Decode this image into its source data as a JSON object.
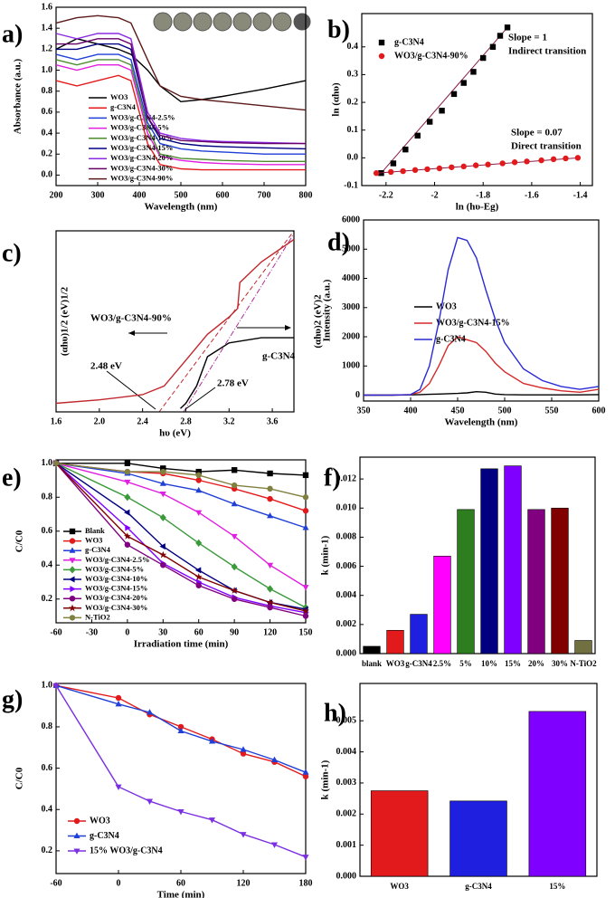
{
  "chart_data": [
    {
      "type": "line",
      "label": "a)",
      "xlabel": "Wavelength (nm)",
      "ylabel": "Absorbance (a.u.)",
      "xlim": [
        200,
        800
      ],
      "ylim": [
        -0.1,
        1.6
      ],
      "xticks": [
        200,
        300,
        400,
        500,
        600,
        700,
        800
      ],
      "yticks": [
        {
          "value": 0,
          "label": "0.0"
        },
        0.2,
        0.4,
        0.6,
        0.8,
        {
          "value": 1,
          "label": "1.0"
        },
        1.2,
        1.4,
        1.6
      ],
      "legend": "lower left",
      "x": [
        200,
        250,
        300,
        350,
        380,
        420,
        450,
        500,
        550,
        600,
        700,
        800
      ],
      "series": [
        {
          "name": "WO3",
          "color": "#000000",
          "values": [
            1.2,
            1.3,
            1.25,
            1.2,
            1.15,
            1.0,
            0.85,
            0.7,
            0.72,
            0.75,
            0.82,
            0.9
          ]
        },
        {
          "name": "g-C3N4",
          "color": "#e31a1c",
          "values": [
            0.9,
            0.85,
            0.9,
            0.95,
            0.9,
            0.3,
            0.1,
            0.06,
            0.05,
            0.05,
            0.05,
            0.05
          ]
        },
        {
          "name": "WO3/g-C3N4-2.5%",
          "color": "#1f3fd6",
          "values": [
            1.15,
            1.1,
            1.15,
            1.15,
            1.1,
            0.5,
            0.3,
            0.25,
            0.23,
            0.22,
            0.2,
            0.2
          ]
        },
        {
          "name": "WO3/g-C3N4-5%",
          "color": "#e020e0",
          "values": [
            1.05,
            1.0,
            1.05,
            1.05,
            1.0,
            0.4,
            0.18,
            0.14,
            0.12,
            0.11,
            0.1,
            0.1
          ]
        },
        {
          "name": "WO3/g-C3N4-10%",
          "color": "#4d8c2e",
          "values": [
            1.1,
            1.05,
            1.1,
            1.1,
            1.05,
            0.45,
            0.2,
            0.16,
            0.15,
            0.14,
            0.13,
            0.13
          ]
        },
        {
          "name": "WO3/g-C3N4-15%",
          "color": "#000080",
          "values": [
            1.2,
            1.2,
            1.25,
            1.25,
            1.2,
            0.55,
            0.35,
            0.3,
            0.28,
            0.27,
            0.26,
            0.25
          ]
        },
        {
          "name": "WO3/g-C3N4-20%",
          "color": "#8a2be2",
          "values": [
            1.35,
            1.3,
            1.35,
            1.35,
            1.3,
            0.6,
            0.4,
            0.35,
            0.33,
            0.32,
            0.31,
            0.3
          ]
        },
        {
          "name": "WO3/g-C3N4-30%",
          "color": "#660066",
          "values": [
            1.25,
            1.25,
            1.3,
            1.3,
            1.25,
            0.55,
            0.38,
            0.33,
            0.32,
            0.31,
            0.3,
            0.3
          ]
        },
        {
          "name": "WO3/g-C3N4-90%",
          "color": "#5c1a1a",
          "values": [
            1.45,
            1.5,
            1.52,
            1.5,
            1.45,
            1.1,
            0.85,
            0.75,
            0.72,
            0.7,
            0.66,
            0.62
          ]
        }
      ]
    },
    {
      "type": "scatter",
      "label": "b)",
      "xlabel": "ln (hυ-Eg)",
      "ylabel": "ln (αhυ)",
      "xlim": [
        -2.3,
        -1.35
      ],
      "ylim": [
        -0.1,
        0.52
      ],
      "xticks": [
        -2.2,
        -2,
        -1.8,
        -1.6,
        -1.4
      ],
      "yticks": [
        -0.1,
        {
          "value": 0,
          "label": "0.0"
        },
        0.1,
        0.2,
        0.3,
        0.4
      ],
      "legend": "upper left",
      "annotations": [
        "Slope = 1",
        "Indirect transition",
        "Slope = 0.07",
        "Direct transition"
      ],
      "series": [
        {
          "name": "g-C3N4",
          "color": "#000000",
          "marker": "square",
          "fit_color": "#8b1a4a",
          "x": [
            -2.22,
            -2.17,
            -2.12,
            -2.07,
            -2.02,
            -1.97,
            -1.92,
            -1.88,
            -1.84,
            -1.8,
            -1.76,
            -1.73,
            -1.7
          ],
          "values": [
            -0.055,
            -0.02,
            0.03,
            0.08,
            0.13,
            0.17,
            0.23,
            0.27,
            0.31,
            0.36,
            0.4,
            0.44,
            0.47
          ]
        },
        {
          "name": "WO3/g-C3N4-90%",
          "color": "#e31a1c",
          "marker": "circle",
          "fit_color": "#8b1a4a",
          "x": [
            -2.24,
            -2.18,
            -2.13,
            -2.08,
            -2.03,
            -1.98,
            -1.93,
            -1.88,
            -1.83,
            -1.78,
            -1.72,
            -1.67,
            -1.62,
            -1.56,
            -1.51,
            -1.46,
            -1.41
          ],
          "values": [
            -0.055,
            -0.051,
            -0.048,
            -0.044,
            -0.041,
            -0.038,
            -0.034,
            -0.031,
            -0.027,
            -0.024,
            -0.02,
            -0.016,
            -0.013,
            -0.009,
            -0.005,
            -0.002,
            0
          ]
        }
      ]
    },
    {
      "type": "line",
      "label": "c)",
      "xlabel": "hυ (eV)",
      "ylabel": "(αhυ)1/2 (eV)1/2",
      "y2label": "(αhυ)2 (eV)2",
      "xlim": [
        1.6,
        3.8
      ],
      "ylim": [
        0,
        1.05
      ],
      "xticks": [
        1.6,
        {
          "value": 2,
          "label": "2.0"
        },
        2.4,
        2.8,
        3.2,
        3.6
      ],
      "legend": "labels",
      "annotations": [
        "2.48 eV",
        "2.78 eV"
      ],
      "series": [
        {
          "name": "WO3/g-C3N4-90%",
          "color": "#c0282d",
          "x": [
            1.6,
            2.0,
            2.4,
            2.6,
            2.8,
            3.0,
            3.2,
            3.28,
            3.3,
            3.5,
            3.8
          ],
          "values": [
            0.05,
            0.07,
            0.1,
            0.15,
            0.3,
            0.45,
            0.55,
            0.6,
            0.75,
            0.87,
            1.0
          ]
        },
        {
          "name": "g-C3N4",
          "color": "#000000",
          "x": [
            2.75,
            2.8,
            2.9,
            3.0,
            3.2,
            3.5,
            3.8
          ],
          "values": [
            0.02,
            0.05,
            0.15,
            0.32,
            0.4,
            0.43,
            0.43
          ]
        }
      ]
    },
    {
      "type": "line",
      "label": "d)",
      "xlabel": "Wavelength (nm)",
      "ylabel": "Intensity (a.u.)",
      "xlim": [
        350,
        600
      ],
      "ylim": [
        -200,
        6000
      ],
      "xticks": [
        350,
        400,
        450,
        500,
        550,
        600
      ],
      "yticks": [
        0,
        1000,
        2000,
        3000,
        4000,
        5000,
        6000
      ],
      "legend": "right",
      "x": [
        350,
        380,
        400,
        410,
        420,
        430,
        440,
        450,
        460,
        470,
        480,
        490,
        500,
        520,
        540,
        560,
        580,
        600
      ],
      "series": [
        {
          "name": "WO3",
          "color": "#000000",
          "values": [
            0,
            0,
            10,
            20,
            30,
            40,
            50,
            60,
            80,
            120,
            100,
            40,
            20,
            10,
            10,
            10,
            10,
            20
          ]
        },
        {
          "name": "WO3/g-C3N4-15%",
          "color": "#d42a2a",
          "values": [
            0,
            5,
            20,
            100,
            400,
            1000,
            1700,
            2000,
            1900,
            1800,
            1500,
            1100,
            800,
            400,
            250,
            150,
            100,
            200
          ]
        },
        {
          "name": "g-C3N4",
          "color": "#2a2ad4",
          "values": [
            0,
            5,
            20,
            200,
            1000,
            2500,
            4300,
            5400,
            5300,
            4700,
            3600,
            2600,
            1800,
            900,
            500,
            300,
            200,
            300
          ]
        }
      ]
    },
    {
      "type": "line",
      "label": "e)",
      "xlabel": "Irradiation time (min)",
      "ylabel": "C/C0",
      "xlim": [
        -60,
        150
      ],
      "ylim": [
        0.06,
        1.02
      ],
      "xticks": [
        -60,
        -30,
        0,
        30,
        60,
        90,
        120,
        150
      ],
      "yticks": [
        0.2,
        0.4,
        0.6,
        0.8,
        {
          "value": 1,
          "label": "1.0"
        }
      ],
      "legend": "lower left",
      "x": [
        -60,
        0,
        30,
        60,
        90,
        120,
        150
      ],
      "series": [
        {
          "name": "Blank",
          "color": "#000000",
          "marker": "square",
          "values": [
            1.0,
            1.0,
            0.97,
            0.95,
            0.96,
            0.94,
            0.93
          ]
        },
        {
          "name": "WO3",
          "color": "#e31a1c",
          "marker": "circle",
          "values": [
            1.0,
            0.95,
            0.94,
            0.9,
            0.85,
            0.79,
            0.72
          ]
        },
        {
          "name": "g-C3N4",
          "color": "#1f3fd6",
          "marker": "triangle",
          "values": [
            1.0,
            0.94,
            0.88,
            0.84,
            0.76,
            0.69,
            0.62
          ]
        },
        {
          "name": "WO3/g-C3N4-2.5%",
          "color": "#e020e0",
          "marker": "triangle-down",
          "values": [
            1.0,
            0.89,
            0.82,
            0.71,
            0.57,
            0.4,
            0.27
          ]
        },
        {
          "name": "WO3/g-C3N4-5%",
          "color": "#3a9a3a",
          "marker": "diamond",
          "values": [
            1.0,
            0.8,
            0.68,
            0.53,
            0.39,
            0.26,
            0.15
          ]
        },
        {
          "name": "WO3/g-C3N4-10%",
          "color": "#000080",
          "marker": "triangle-left",
          "values": [
            1.0,
            0.71,
            0.51,
            0.37,
            0.25,
            0.18,
            0.14
          ]
        },
        {
          "name": "WO3/g-C3N4-15%",
          "color": "#8000ff",
          "marker": "triangle-right",
          "values": [
            1.0,
            0.62,
            0.41,
            0.3,
            0.21,
            0.16,
            0.12
          ]
        },
        {
          "name": "WO3/g-C3N4-20%",
          "color": "#800080",
          "marker": "circle",
          "values": [
            1.0,
            0.52,
            0.4,
            0.28,
            0.2,
            0.15,
            0.1
          ]
        },
        {
          "name": "WO3/g-C3N4-30%",
          "color": "#800000",
          "marker": "star",
          "values": [
            1.0,
            0.57,
            0.46,
            0.33,
            0.25,
            0.18,
            0.13
          ]
        },
        {
          "name": "N-TiO2",
          "color": "#808040",
          "marker": "circle",
          "values": [
            1.0,
            0.95,
            0.95,
            0.93,
            0.87,
            0.85,
            0.8
          ]
        }
      ]
    },
    {
      "type": "bar",
      "label": "f)",
      "ylabel": "k (min-1)",
      "ylim": [
        0,
        0.0135
      ],
      "yticks": [
        {
          "value": 0,
          "label": "0.000"
        },
        {
          "value": 0.002,
          "label": "0.002"
        },
        {
          "value": 0.004,
          "label": "0.004"
        },
        {
          "value": 0.006,
          "label": "0.006"
        },
        {
          "value": 0.008,
          "label": "0.008"
        },
        {
          "value": 0.01,
          "label": "0.010"
        },
        {
          "value": 0.012,
          "label": "0.012"
        }
      ],
      "categories": [
        "blank",
        "WO3",
        "g-C3N4",
        "2.5%",
        "5%",
        "10%",
        "15%",
        "20%",
        "30%",
        "N-TiO2"
      ],
      "values": [
        0.0005,
        0.0016,
        0.0027,
        0.0067,
        0.0099,
        0.0127,
        0.0129,
        0.0099,
        0.01,
        0.0009
      ],
      "colors": [
        "#000000",
        "#e31a1c",
        "#1f1fe0",
        "#ff00ff",
        "#2e7d1e",
        "#000080",
        "#8000ff",
        "#800080",
        "#800000",
        "#707040"
      ]
    },
    {
      "type": "line",
      "label": "g)",
      "xlabel": "Time (min)",
      "ylabel": "C/C0",
      "xlim": [
        -60,
        180
      ],
      "ylim": [
        0.09,
        1.01
      ],
      "xticks": [
        -60,
        0,
        60,
        120,
        180
      ],
      "yticks": [
        0.2,
        0.4,
        0.6,
        0.8,
        {
          "value": 1,
          "label": "1.0"
        }
      ],
      "legend": "lower left",
      "x": [
        -60,
        0,
        30,
        60,
        90,
        120,
        150,
        180
      ],
      "series": [
        {
          "name": "WO3",
          "color": "#e31a1c",
          "marker": "circle",
          "values": [
            1.0,
            0.94,
            0.86,
            0.8,
            0.74,
            0.67,
            0.63,
            0.56
          ]
        },
        {
          "name": "g-C3N4",
          "color": "#1f3fd6",
          "marker": "triangle",
          "values": [
            1.0,
            0.91,
            0.87,
            0.78,
            0.73,
            0.69,
            0.64,
            0.58
          ]
        },
        {
          "name": "15% WO3/g-C3N4",
          "color": "#7b2fe0",
          "marker": "triangle-down",
          "values": [
            1.0,
            0.51,
            0.44,
            0.39,
            0.35,
            0.28,
            0.23,
            0.17
          ]
        }
      ]
    },
    {
      "type": "bar",
      "label": "h)",
      "ylabel": "k (min-1)",
      "ylim": [
        0,
        0.0062
      ],
      "yticks": [
        {
          "value": 0,
          "label": "0.000"
        },
        0.001,
        0.002,
        0.003,
        0.004,
        0.005
      ],
      "categories": [
        "WO3",
        "g-C3N4",
        "15%"
      ],
      "values": [
        0.00275,
        0.00242,
        0.0053
      ],
      "colors": [
        "#e31a1c",
        "#1f1fe0",
        "#8000ff"
      ]
    }
  ]
}
